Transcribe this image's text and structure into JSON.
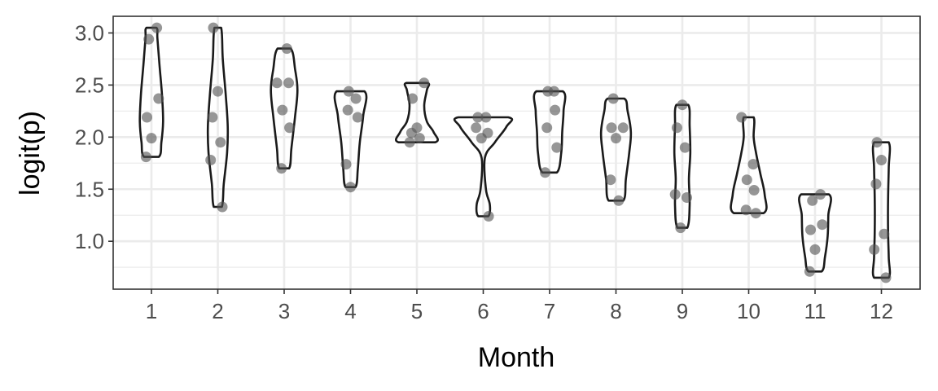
{
  "chart_data": {
    "type": "violin",
    "xlabel": "Month",
    "ylabel": "logit(p)",
    "categories": [
      "1",
      "2",
      "3",
      "4",
      "5",
      "6",
      "7",
      "8",
      "9",
      "10",
      "11",
      "12"
    ],
    "ylim": [
      0.54,
      3.16
    ],
    "y_ticks": [
      1.0,
      1.5,
      2.0,
      2.5,
      3.0
    ],
    "y_tick_labels": [
      "1.0",
      "1.5",
      "2.0",
      "2.5",
      "3.0"
    ],
    "grid": true,
    "theme": "bw",
    "colors": {
      "outline": "#1a1a1a",
      "points": "#555555",
      "grid": "#ebebeb",
      "panel_border": "#333333"
    },
    "groups": [
      {
        "month": "1",
        "values": [
          3.05,
          2.94,
          2.37,
          2.19,
          1.99,
          1.81
        ],
        "violin": {
          "min": 1.81,
          "max": 3.05,
          "shape": [
            [
              1.81,
              0.22
            ],
            [
              1.95,
              0.3
            ],
            [
              2.15,
              0.35
            ],
            [
              2.4,
              0.32
            ],
            [
              2.7,
              0.24
            ],
            [
              2.95,
              0.18
            ],
            [
              3.05,
              0.15
            ]
          ]
        }
      },
      {
        "month": "2",
        "values": [
          3.05,
          2.44,
          2.19,
          1.95,
          1.78,
          1.33
        ],
        "violin": {
          "min": 1.33,
          "max": 3.05,
          "shape": [
            [
              1.33,
              0.12
            ],
            [
              1.55,
              0.18
            ],
            [
              1.85,
              0.28
            ],
            [
              2.1,
              0.3
            ],
            [
              2.4,
              0.24
            ],
            [
              2.75,
              0.15
            ],
            [
              3.05,
              0.1
            ]
          ]
        }
      },
      {
        "month": "3",
        "values": [
          2.85,
          2.52,
          2.52,
          2.26,
          2.09,
          1.7
        ],
        "violin": {
          "min": 1.7,
          "max": 2.85,
          "shape": [
            [
              1.7,
              0.15
            ],
            [
              1.9,
              0.22
            ],
            [
              2.2,
              0.33
            ],
            [
              2.45,
              0.4
            ],
            [
              2.65,
              0.33
            ],
            [
              2.85,
              0.2
            ]
          ]
        }
      },
      {
        "month": "4",
        "values": [
          2.44,
          2.37,
          2.26,
          2.19,
          1.74,
          1.52
        ],
        "violin": {
          "min": 1.52,
          "max": 2.44,
          "shape": [
            [
              1.52,
              0.15
            ],
            [
              1.7,
              0.22
            ],
            [
              1.95,
              0.28
            ],
            [
              2.2,
              0.38
            ],
            [
              2.44,
              0.42
            ]
          ]
        }
      },
      {
        "month": "5",
        "values": [
          2.52,
          2.37,
          2.09,
          2.04,
          1.99,
          1.95
        ],
        "violin": {
          "min": 1.95,
          "max": 2.52,
          "shape": [
            [
              1.95,
              0.55
            ],
            [
              2.05,
              0.5
            ],
            [
              2.15,
              0.3
            ],
            [
              2.3,
              0.22
            ],
            [
              2.45,
              0.3
            ],
            [
              2.52,
              0.32
            ]
          ]
        }
      },
      {
        "month": "6",
        "values": [
          2.19,
          2.19,
          2.09,
          2.04,
          1.99,
          1.24
        ],
        "violin": {
          "min": 1.24,
          "max": 2.19,
          "shape": [
            [
              1.24,
              0.15
            ],
            [
              1.35,
              0.2
            ],
            [
              1.5,
              0.08
            ],
            [
              1.8,
              0.05
            ],
            [
              1.95,
              0.35
            ],
            [
              2.1,
              0.7
            ],
            [
              2.19,
              0.75
            ]
          ]
        }
      },
      {
        "month": "7",
        "values": [
          2.44,
          2.44,
          2.26,
          2.09,
          1.9,
          1.66
        ],
        "violin": {
          "min": 1.66,
          "max": 2.44,
          "shape": [
            [
              1.66,
              0.22
            ],
            [
              1.85,
              0.35
            ],
            [
              2.05,
              0.38
            ],
            [
              2.25,
              0.42
            ],
            [
              2.44,
              0.4
            ]
          ]
        }
      },
      {
        "month": "8",
        "values": [
          2.37,
          2.09,
          2.09,
          1.99,
          1.59,
          1.39
        ],
        "violin": {
          "min": 1.39,
          "max": 2.37,
          "shape": [
            [
              1.39,
              0.22
            ],
            [
              1.6,
              0.3
            ],
            [
              1.85,
              0.4
            ],
            [
              2.05,
              0.45
            ],
            [
              2.25,
              0.35
            ],
            [
              2.37,
              0.25
            ]
          ]
        }
      },
      {
        "month": "9",
        "values": [
          2.31,
          2.09,
          1.9,
          1.45,
          1.42,
          1.13
        ],
        "violin": {
          "min": 1.13,
          "max": 2.31,
          "shape": [
            [
              1.13,
              0.15
            ],
            [
              1.35,
              0.22
            ],
            [
              1.6,
              0.2
            ],
            [
              1.85,
              0.24
            ],
            [
              2.1,
              0.22
            ],
            [
              2.31,
              0.18
            ]
          ]
        }
      },
      {
        "month": "10",
        "values": [
          2.19,
          1.74,
          1.59,
          1.49,
          1.3,
          1.27
        ],
        "violin": {
          "min": 1.27,
          "max": 2.19,
          "shape": [
            [
              1.27,
              0.45
            ],
            [
              1.45,
              0.48
            ],
            [
              1.65,
              0.35
            ],
            [
              1.85,
              0.22
            ],
            [
              2.0,
              0.15
            ],
            [
              2.19,
              0.15
            ]
          ]
        }
      },
      {
        "month": "11",
        "values": [
          1.45,
          1.39,
          1.16,
          1.11,
          0.92,
          0.71
        ],
        "violin": {
          "min": 0.71,
          "max": 1.45,
          "shape": [
            [
              0.71,
              0.2
            ],
            [
              0.85,
              0.3
            ],
            [
              1.05,
              0.38
            ],
            [
              1.25,
              0.4
            ],
            [
              1.45,
              0.42
            ]
          ]
        }
      },
      {
        "month": "12",
        "values": [
          1.95,
          1.78,
          1.55,
          1.07,
          0.92,
          0.65
        ],
        "violin": {
          "min": 0.65,
          "max": 1.95,
          "shape": [
            [
              0.65,
              0.22
            ],
            [
              0.85,
              0.22
            ],
            [
              1.1,
              0.2
            ],
            [
              1.4,
              0.2
            ],
            [
              1.7,
              0.22
            ],
            [
              1.95,
              0.22
            ]
          ]
        }
      }
    ]
  }
}
